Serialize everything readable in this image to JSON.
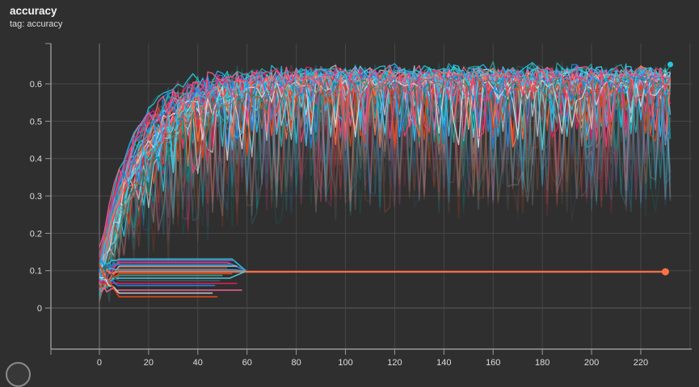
{
  "header": {
    "title": "accuracy",
    "subtitle": "tag: accuracy"
  },
  "colors": {
    "background": "#2f2f2f",
    "grid": "#474747",
    "grid_zero_x": "#7a7a7a",
    "grid_zero_y": "#5c5c5c",
    "axis": "#9a9a9a",
    "tick_label": "#dedede",
    "accent_orange": "#ff7043"
  },
  "chart_data": {
    "type": "line",
    "title": "accuracy",
    "subtitle": "tag: accuracy",
    "xlabel": "",
    "ylabel": "",
    "grid": true,
    "legend": "none",
    "xlim": [
      -19.7,
      240.7
    ],
    "ylim": [
      -0.11,
      0.708
    ],
    "x_ticks": [
      {
        "v": 0,
        "label": "0"
      },
      {
        "v": 20,
        "label": "20"
      },
      {
        "v": 40,
        "label": "40"
      },
      {
        "v": 60,
        "label": "60"
      },
      {
        "v": 80,
        "label": "80"
      },
      {
        "v": 100,
        "label": "100"
      },
      {
        "v": 120,
        "label": "120"
      },
      {
        "v": 140,
        "label": "140"
      },
      {
        "v": 160,
        "label": "160"
      },
      {
        "v": 180,
        "label": "180"
      },
      {
        "v": 200,
        "label": "200"
      },
      {
        "v": 220,
        "label": "220"
      }
    ],
    "x_grid_extra": [
      240
    ],
    "y_ticks": [
      {
        "v": 0,
        "label": "0"
      },
      {
        "v": 0.1,
        "label": "0.1"
      },
      {
        "v": 0.2,
        "label": "0.2"
      },
      {
        "v": 0.3,
        "label": "0.3"
      },
      {
        "v": 0.4,
        "label": "0.4"
      },
      {
        "v": 0.5,
        "label": "0.5"
      },
      {
        "v": 0.6,
        "label": "0.6"
      }
    ],
    "x_end": 232,
    "sample_step": 2,
    "series": [
      {
        "kind": "learning",
        "c": "#29b6f6",
        "plateau": 0.64,
        "tau": 16,
        "seed": 7
      },
      {
        "kind": "learning",
        "c": "#e64a19",
        "plateau": 0.628,
        "tau": 19,
        "seed": 20
      },
      {
        "kind": "learning",
        "c": "#ec407a",
        "plateau": 0.635,
        "tau": 14,
        "seed": 33
      },
      {
        "kind": "learning",
        "c": "#26a69a",
        "plateau": 0.612,
        "tau": 21,
        "seed": 46
      },
      {
        "kind": "learning",
        "c": "#b0bec5",
        "plateau": 0.645,
        "tau": 17,
        "seed": 59
      },
      {
        "kind": "learning",
        "c": "#1e88e5",
        "plateau": 0.62,
        "tau": 15,
        "seed": 72
      },
      {
        "kind": "learning",
        "c": "#ff7043",
        "plateau": 0.633,
        "tau": 20,
        "seed": 85
      },
      {
        "kind": "learning",
        "c": "#26c6da",
        "plateau": 0.65,
        "tau": 13,
        "seed": 98
      },
      {
        "kind": "learning",
        "c": "#e91e63",
        "plateau": 0.618,
        "tau": 18,
        "seed": 111
      },
      {
        "kind": "learning",
        "c": "#8d6e63",
        "plateau": 0.605,
        "tau": 22,
        "seed": 124
      },
      {
        "kind": "learning",
        "c": "#4dd0e1",
        "plateau": 0.642,
        "tau": 16,
        "seed": 137
      },
      {
        "kind": "learning",
        "c": "#d84315",
        "plateau": 0.625,
        "tau": 14,
        "seed": 150
      },
      {
        "kind": "learning",
        "c": "#cfd8dc",
        "plateau": 0.636,
        "tau": 19,
        "seed": 163
      },
      {
        "kind": "learning",
        "c": "#00897b",
        "plateau": 0.61,
        "tau": 23,
        "seed": 176
      },
      {
        "kind": "learning",
        "c": "#f06292",
        "plateau": 0.629,
        "tau": 15,
        "seed": 189
      },
      {
        "kind": "learning",
        "c": "#455a64",
        "plateau": 0.6,
        "tau": 20,
        "seed": 202
      },
      {
        "kind": "learning",
        "c": "#29b6f6",
        "plateau": 0.648,
        "tau": 14,
        "seed": 215
      },
      {
        "kind": "learning",
        "c": "#ff7043",
        "plateau": 0.622,
        "tau": 17,
        "seed": 228
      },
      {
        "kind": "learning",
        "c": "#26c6da",
        "plateau": 0.638,
        "tau": 21,
        "seed": 241
      },
      {
        "kind": "learning",
        "c": "#e64a19",
        "plateau": 0.615,
        "tau": 16,
        "seed": 254
      },
      {
        "kind": "learning",
        "c": "#1e88e5",
        "plateau": 0.644,
        "tau": 13,
        "seed": 267
      },
      {
        "kind": "learning",
        "c": "#ec407a",
        "plateau": 0.626,
        "tau": 18,
        "seed": 280
      },
      {
        "kind": "learning",
        "c": "#b0bec5",
        "plateau": 0.634,
        "tau": 22,
        "seed": 293
      },
      {
        "kind": "learning",
        "c": "#26a69a",
        "plateau": 0.652,
        "tau": 15,
        "seed": 306
      },
      {
        "kind": "learning",
        "c": "#4dd0e1",
        "plateau": 0.619,
        "tau": 19,
        "seed": 319
      },
      {
        "kind": "learning",
        "c": "#e91e63",
        "plateau": 0.641,
        "tau": 14,
        "seed": 332
      },
      {
        "kind": "learning",
        "c": "#d84315",
        "plateau": 0.608,
        "tau": 20,
        "seed": 345
      },
      {
        "kind": "learning",
        "c": "#29b6f6",
        "plateau": 0.631,
        "tau": 17,
        "seed": 358
      },
      {
        "kind": "learning",
        "c": "#f06292",
        "plateau": 0.646,
        "tau": 13,
        "seed": 371
      },
      {
        "kind": "learning",
        "c": "#00897b",
        "plateau": 0.623,
        "tau": 21,
        "seed": 384
      },
      {
        "kind": "learning",
        "c": "#cfd8dc",
        "plateau": 0.613,
        "tau": 16,
        "seed": 397
      },
      {
        "kind": "learning",
        "c": "#ff7043",
        "plateau": 0.639,
        "tau": 18,
        "seed": 410
      },
      {
        "kind": "learning",
        "c": "#1e88e5",
        "plateau": 0.627,
        "tau": 15,
        "seed": 423
      },
      {
        "kind": "learning",
        "c": "#26c6da",
        "plateau": 0.647,
        "tau": 19,
        "seed": 436
      },
      {
        "kind": "learning",
        "c": "#8d6e63",
        "plateau": 0.616,
        "tau": 22,
        "seed": 449
      },
      {
        "kind": "learning",
        "c": "#ec407a",
        "plateau": 0.637,
        "tau": 14,
        "seed": 462
      },
      {
        "kind": "flat",
        "c": "#26c6da",
        "level": 0.131,
        "end": 60,
        "seed": 501,
        "swoop": 0.097
      },
      {
        "kind": "flat",
        "c": "#7e57c2",
        "level": 0.127,
        "end": 55,
        "seed": 502
      },
      {
        "kind": "flat",
        "c": "#ec407a",
        "level": 0.122,
        "end": 58,
        "seed": 503,
        "swoop": 0.105
      },
      {
        "kind": "flat",
        "c": "#1e88e5",
        "level": 0.117,
        "end": 60,
        "seed": 504,
        "swoop": 0.097
      },
      {
        "kind": "flat",
        "c": "#b0bec5",
        "level": 0.112,
        "end": 56,
        "seed": 505
      },
      {
        "kind": "flat",
        "c": "#d84315",
        "level": 0.107,
        "end": 52,
        "seed": 506
      },
      {
        "kind": "flat",
        "c": "#29b6f6",
        "level": 0.102,
        "end": 61,
        "seed": 507,
        "swoop": 0.097
      },
      {
        "kind": "flat",
        "c": "#ff7043",
        "level": 0.097,
        "end": 230,
        "seed": 508,
        "width": 2.2,
        "marker": true
      },
      {
        "kind": "flat",
        "c": "#e64a19",
        "level": 0.092,
        "end": 54,
        "seed": 509
      },
      {
        "kind": "flat",
        "c": "#26a69a",
        "level": 0.087,
        "end": 50,
        "seed": 510
      },
      {
        "kind": "flat",
        "c": "#4dd0e1",
        "level": 0.08,
        "end": 59,
        "seed": 511,
        "swoop": 0.097
      },
      {
        "kind": "flat",
        "c": "#455a64",
        "level": 0.073,
        "end": 49,
        "seed": 512
      },
      {
        "kind": "flat",
        "c": "#e91e63",
        "level": 0.066,
        "end": 56,
        "seed": 513
      },
      {
        "kind": "flat",
        "c": "#1e88e5",
        "level": 0.06,
        "end": 47,
        "seed": 514
      },
      {
        "kind": "flat",
        "c": "#f06292",
        "level": 0.048,
        "end": 58,
        "seed": 515
      },
      {
        "kind": "flat",
        "c": "#cfd8dc",
        "level": 0.04,
        "end": 46,
        "seed": 516
      },
      {
        "kind": "flat",
        "c": "#e64a19",
        "level": 0.03,
        "end": 48,
        "seed": 517
      }
    ],
    "dots": [
      {
        "x": 230,
        "y": 0.097,
        "r": 4.5,
        "c": "#ff7043"
      },
      {
        "x": 232,
        "y": 0.652,
        "r": 3.5,
        "c": "#26c6da"
      }
    ]
  }
}
